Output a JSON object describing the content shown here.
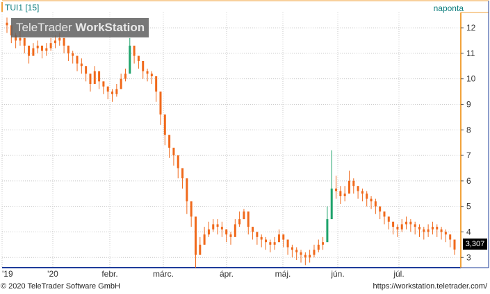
{
  "header": {
    "ticker": "TUI1 [15]",
    "frequency": "naponta",
    "watermark_light": "TeleTrader ",
    "watermark_bold": "WorkStation"
  },
  "footer": {
    "copyright": "© 2020 TeleTrader Software GmbH",
    "url": "https://workstation.teletrader.com/"
  },
  "last_price_label": "3,307",
  "colors": {
    "candle": "#f0691b",
    "candle_alt": "#1ea36b",
    "axis_accent": "#f1a23a",
    "text_accent": "#0c7d7d",
    "grid": "#c8c8c8"
  },
  "chart_data": {
    "type": "candlestick",
    "title": "TUI1 [15]",
    "xlabel": "",
    "ylabel": "",
    "ylim": [
      2.6,
      12.6
    ],
    "y_ticks": [
      3,
      4,
      5,
      6,
      7,
      8,
      9,
      10,
      11,
      12
    ],
    "x_tick_labels": [
      "'19",
      "'20",
      "febr.",
      "márc.",
      "ápr.",
      "máj.",
      "jún.",
      "júl."
    ],
    "grid": true,
    "last_value": 3.307,
    "series": [
      {
        "close": [
          12.1,
          11.7,
          11.5,
          11.6,
          11.3,
          10.9,
          11.2,
          11.3,
          11.1,
          11.2,
          11.4,
          11.5,
          11.6,
          11.3,
          11.0,
          10.9,
          10.6,
          10.5,
          10.2,
          9.8,
          10.3,
          9.9,
          9.7,
          9.5,
          9.4,
          9.6,
          10.0,
          10.2,
          11.3,
          10.9,
          10.7,
          10.3,
          10.2,
          10.1,
          9.5,
          8.6,
          7.8,
          7.3,
          7.0,
          6.5,
          6.1,
          5.2,
          4.6,
          3.1,
          3.5,
          3.9,
          4.1,
          4.3,
          4.2,
          4.1,
          3.9,
          3.8,
          4.3,
          4.5,
          4.8,
          4.2,
          4.0,
          3.8,
          3.7,
          3.6,
          3.5,
          3.6,
          3.9,
          3.7,
          3.4,
          3.3,
          3.2,
          3.1,
          3.0,
          3.1,
          3.3,
          3.5,
          3.6,
          4.5,
          5.7,
          5.6,
          5.4,
          5.5,
          6.0,
          5.8,
          5.6,
          5.5,
          5.3,
          5.2,
          5.0,
          4.8,
          4.6,
          4.4,
          4.2,
          4.1,
          4.3,
          4.4,
          4.3,
          4.2,
          4.1,
          4.0,
          4.1,
          4.2,
          4.1,
          4.0,
          3.9,
          3.7,
          3.31
        ],
        "high": [
          12.4,
          12.0,
          11.8,
          11.9,
          11.6,
          11.2,
          11.4,
          11.5,
          11.3,
          11.4,
          11.6,
          11.7,
          11.8,
          11.6,
          11.3,
          11.1,
          10.9,
          10.8,
          10.5,
          10.2,
          10.5,
          10.2,
          9.9,
          9.7,
          9.6,
          9.8,
          10.2,
          10.4,
          11.6,
          11.2,
          10.9,
          10.6,
          10.4,
          10.3,
          9.8,
          8.9,
          8.2,
          7.6,
          7.3,
          6.9,
          6.4,
          5.6,
          4.9,
          3.6,
          3.8,
          4.2,
          4.4,
          4.5,
          4.5,
          4.4,
          4.1,
          4.0,
          4.5,
          4.8,
          4.9,
          4.5,
          4.2,
          4.0,
          3.9,
          3.8,
          3.7,
          3.8,
          4.1,
          3.9,
          3.6,
          3.5,
          3.4,
          3.3,
          3.2,
          3.3,
          3.5,
          3.7,
          3.8,
          5.0,
          7.2,
          6.2,
          5.8,
          5.8,
          6.4,
          6.1,
          5.8,
          5.7,
          5.6,
          5.4,
          5.3,
          5.0,
          4.8,
          4.6,
          4.4,
          4.3,
          4.5,
          4.6,
          4.5,
          4.4,
          4.3,
          4.2,
          4.3,
          4.4,
          4.3,
          4.2,
          4.1,
          3.9,
          3.6
        ],
        "low": [
          11.8,
          11.4,
          11.2,
          11.3,
          11.0,
          10.6,
          10.9,
          11.0,
          10.8,
          10.9,
          11.1,
          11.2,
          11.3,
          11.0,
          10.7,
          10.6,
          10.3,
          10.2,
          9.9,
          9.5,
          10.0,
          9.6,
          9.4,
          9.2,
          9.1,
          9.3,
          9.7,
          9.9,
          10.8,
          10.6,
          10.4,
          10.0,
          9.9,
          9.8,
          9.1,
          8.2,
          7.4,
          6.9,
          6.6,
          6.1,
          5.7,
          4.7,
          4.2,
          2.6,
          3.1,
          3.5,
          3.8,
          4.0,
          3.9,
          3.8,
          3.6,
          3.5,
          4.0,
          4.2,
          4.5,
          3.9,
          3.7,
          3.5,
          3.4,
          3.3,
          3.2,
          3.3,
          3.6,
          3.4,
          3.1,
          3.0,
          2.9,
          2.8,
          2.7,
          2.8,
          3.0,
          3.2,
          3.3,
          4.2,
          5.3,
          5.3,
          5.1,
          5.2,
          5.7,
          5.5,
          5.3,
          5.2,
          5.0,
          4.9,
          4.7,
          4.5,
          4.3,
          4.1,
          3.9,
          3.8,
          4.0,
          4.1,
          4.0,
          3.9,
          3.8,
          3.7,
          3.8,
          3.9,
          3.8,
          3.7,
          3.6,
          3.4,
          3.1
        ]
      }
    ]
  }
}
